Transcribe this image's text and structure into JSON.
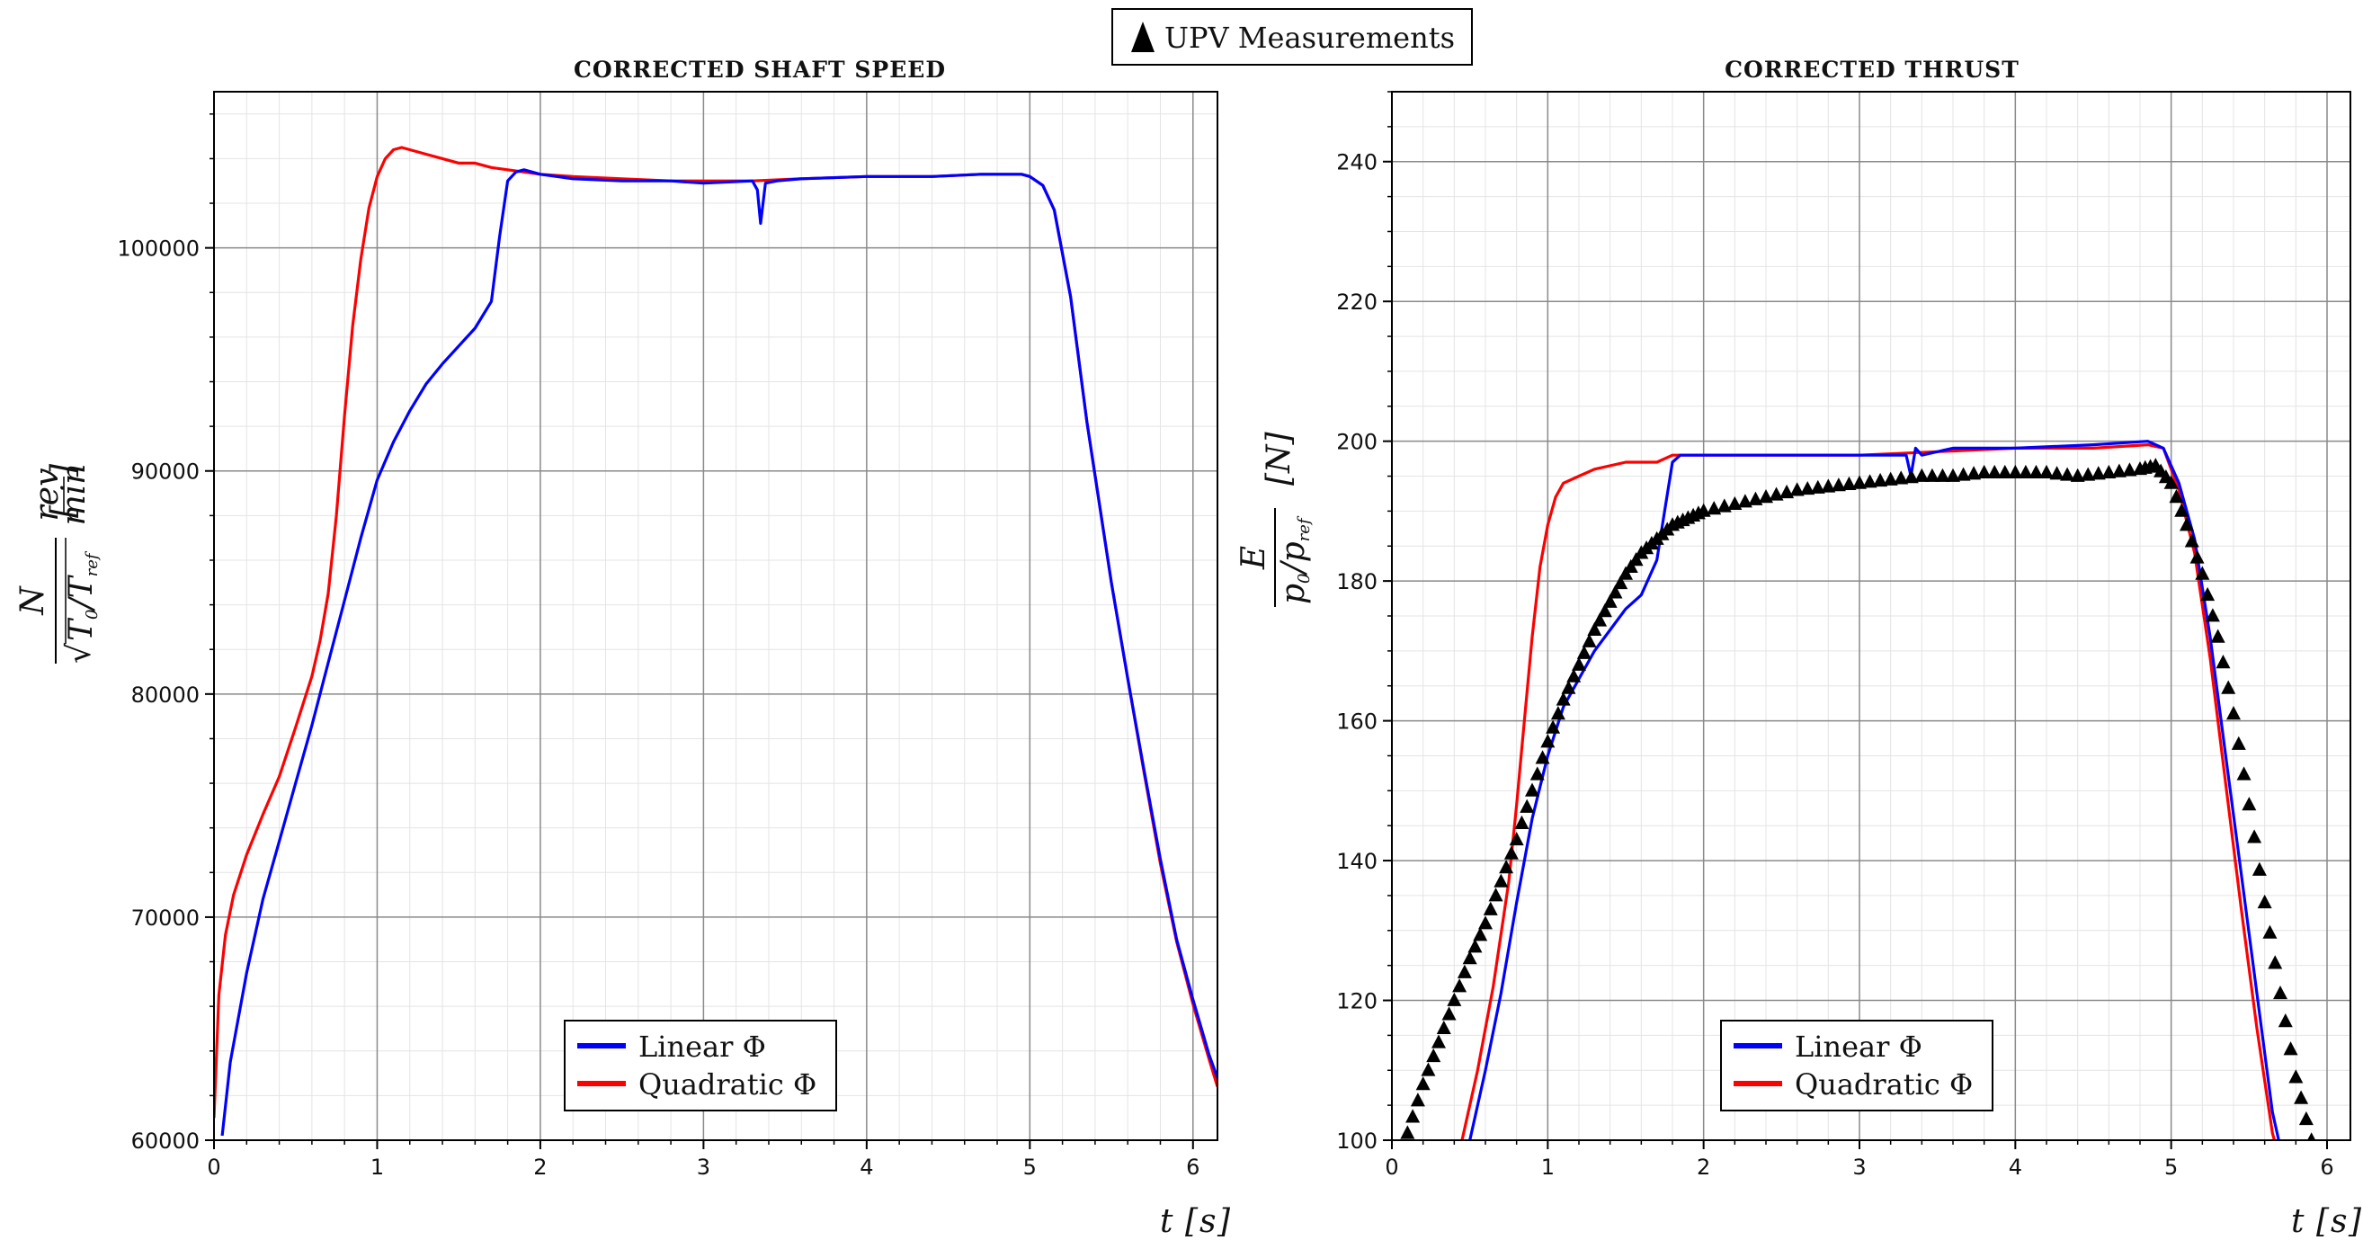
{
  "global_legend": {
    "marker": "black-triangle",
    "label": "UPV Measurements"
  },
  "chart_data": [
    {
      "type": "line",
      "title": "CORRECTED SHAFT SPEED",
      "xlabel": "t [s]",
      "ylabel": "N / sqrt(T0/Tref) [rev/min]",
      "xlim": [
        0,
        6.15
      ],
      "ylim": [
        60000,
        107000
      ],
      "xticks": [
        0,
        1,
        2,
        3,
        4,
        5,
        6
      ],
      "yticks": [
        60000,
        70000,
        80000,
        90000,
        100000
      ],
      "ytick_labels": [
        "60000",
        "70000",
        "80000",
        "90000",
        "100000"
      ],
      "grid": true,
      "legend_position": "bottom-center",
      "series": [
        {
          "name": "Linear Φ",
          "color": "#0000ff",
          "x": [
            0.05,
            0.1,
            0.2,
            0.3,
            0.4,
            0.5,
            0.6,
            0.7,
            0.8,
            0.9,
            1.0,
            1.1,
            1.2,
            1.3,
            1.4,
            1.5,
            1.6,
            1.7,
            1.75,
            1.8,
            1.85,
            1.9,
            2.0,
            2.2,
            2.5,
            2.8,
            3.0,
            3.3,
            3.33,
            3.35,
            3.38,
            3.45,
            3.6,
            4.0,
            4.4,
            4.7,
            4.95,
            5.0,
            5.08,
            5.15,
            5.25,
            5.35,
            5.5,
            5.6,
            5.7,
            5.8,
            5.9,
            6.0,
            6.1,
            6.15
          ],
          "y": [
            60200,
            63500,
            67500,
            70800,
            73400,
            76000,
            78600,
            81400,
            84200,
            87000,
            89600,
            91300,
            92700,
            93900,
            94800,
            95600,
            96400,
            97600,
            100500,
            103000,
            103400,
            103500,
            103300,
            103100,
            103000,
            103000,
            102900,
            103000,
            102600,
            101100,
            102900,
            103000,
            103100,
            103200,
            103200,
            103300,
            103300,
            103200,
            102800,
            101700,
            97800,
            92200,
            85000,
            80700,
            76600,
            72600,
            69000,
            66300,
            63800,
            62800
          ]
        },
        {
          "name": "Quadratic Φ",
          "color": "#ff0000",
          "x": [
            0.0,
            0.03,
            0.07,
            0.12,
            0.2,
            0.3,
            0.4,
            0.5,
            0.6,
            0.65,
            0.7,
            0.75,
            0.8,
            0.85,
            0.9,
            0.95,
            1.0,
            1.05,
            1.1,
            1.15,
            1.2,
            1.3,
            1.4,
            1.5,
            1.6,
            1.7,
            1.8,
            1.9,
            2.0,
            2.2,
            2.5,
            2.8,
            3.0,
            3.3,
            3.6,
            4.0,
            4.4,
            4.7,
            4.95,
            5.0,
            5.08,
            5.15,
            5.25,
            5.35,
            5.5,
            5.6,
            5.7,
            5.8,
            5.9,
            6.0,
            6.1,
            6.15
          ],
          "y": [
            61000,
            66500,
            69200,
            71000,
            72800,
            74600,
            76300,
            78500,
            80800,
            82400,
            84500,
            88000,
            92500,
            96500,
            99500,
            101800,
            103200,
            104000,
            104400,
            104500,
            104400,
            104200,
            104000,
            103800,
            103800,
            103600,
            103500,
            103400,
            103300,
            103200,
            103100,
            103000,
            103000,
            103000,
            103100,
            103200,
            103200,
            103300,
            103300,
            103200,
            102800,
            101700,
            97800,
            92200,
            85000,
            80700,
            76500,
            72400,
            68900,
            66100,
            63600,
            62400
          ]
        }
      ]
    },
    {
      "type": "line",
      "title": "CORRECTED THRUST",
      "xlabel": "t [s]",
      "ylabel": "E / (p0/pref) [N]",
      "xlim": [
        0,
        6.15
      ],
      "ylim": [
        100,
        250
      ],
      "xticks": [
        0,
        1,
        2,
        3,
        4,
        5,
        6
      ],
      "yticks": [
        100,
        120,
        140,
        160,
        180,
        200,
        220,
        240
      ],
      "ytick_labels": [
        "100",
        "120",
        "140",
        "160",
        "180",
        "200",
        "220",
        "240"
      ],
      "grid": true,
      "legend_position": "bottom-center",
      "series": [
        {
          "name": "Linear Φ",
          "color": "#0000ff",
          "x": [
            0.5,
            0.6,
            0.7,
            0.8,
            0.9,
            1.0,
            1.1,
            1.2,
            1.3,
            1.4,
            1.5,
            1.6,
            1.7,
            1.75,
            1.8,
            1.85,
            1.9,
            2.0,
            2.5,
            3.0,
            3.3,
            3.33,
            3.36,
            3.4,
            3.6,
            4.0,
            4.5,
            4.85,
            4.95,
            5.05,
            5.15,
            5.25,
            5.35,
            5.45,
            5.55,
            5.65,
            5.7
          ],
          "y": [
            100,
            110,
            121,
            134,
            146,
            155,
            162,
            166,
            170,
            173,
            176,
            178,
            183,
            190,
            197,
            198,
            198,
            198,
            198,
            198,
            198,
            195,
            199,
            198,
            199,
            199,
            199.5,
            200,
            199,
            194,
            186,
            172,
            155,
            138,
            121,
            104,
            99
          ]
        },
        {
          "name": "Quadratic Φ",
          "color": "#ff0000",
          "x": [
            0.45,
            0.55,
            0.65,
            0.75,
            0.8,
            0.85,
            0.9,
            0.95,
            1.0,
            1.05,
            1.1,
            1.2,
            1.3,
            1.5,
            1.7,
            1.8,
            1.9,
            2.0,
            2.5,
            3.0,
            3.5,
            4.0,
            4.5,
            4.85,
            4.95,
            5.05,
            5.15,
            5.25,
            5.35,
            5.45,
            5.55,
            5.65,
            5.7
          ],
          "y": [
            100,
            110,
            122,
            137,
            148,
            160,
            172,
            182,
            188,
            192,
            194,
            195,
            196,
            197,
            197,
            198,
            198,
            198,
            198,
            198,
            198.5,
            199,
            199,
            199.5,
            199,
            193,
            184,
            169,
            151,
            133,
            116,
            101,
            97
          ]
        },
        {
          "name": "UPV Measurements",
          "color": "#000000",
          "marker": "triangle",
          "x": [
            0.1,
            0.2,
            0.3,
            0.4,
            0.5,
            0.6,
            0.7,
            0.8,
            0.9,
            1.0,
            1.1,
            1.2,
            1.3,
            1.4,
            1.5,
            1.6,
            1.7,
            1.8,
            1.9,
            2.0,
            2.2,
            2.4,
            2.6,
            2.8,
            3.0,
            3.2,
            3.4,
            3.6,
            3.8,
            4.0,
            4.2,
            4.4,
            4.6,
            4.8,
            4.9,
            5.0,
            5.1,
            5.2,
            5.3,
            5.4,
            5.5,
            5.6,
            5.7,
            5.8,
            5.9
          ],
          "y": [
            101,
            108,
            114,
            120,
            126,
            131,
            137,
            143,
            150,
            157,
            163,
            168,
            173,
            177,
            181,
            184,
            186,
            188,
            189,
            190,
            191,
            192,
            193,
            193.5,
            194,
            194.5,
            195,
            195,
            195.5,
            195.5,
            195.5,
            195,
            195.5,
            196,
            196.5,
            194,
            188,
            181,
            172,
            161,
            148,
            134,
            121,
            109,
            100
          ]
        }
      ]
    }
  ]
}
